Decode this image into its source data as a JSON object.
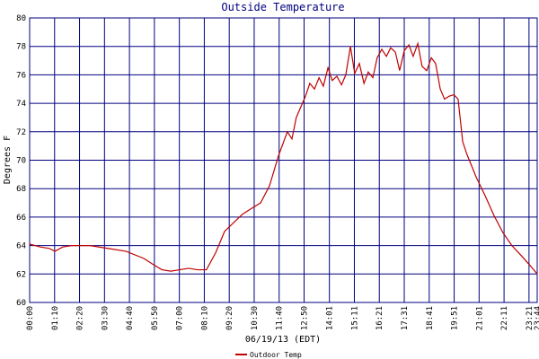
{
  "chart_data": {
    "type": "line",
    "title": "Outside Temperature",
    "x_label": "06/19/13 (EDT)",
    "y_label": "Degrees F",
    "x": [
      0,
      30,
      55,
      71,
      93,
      118,
      169,
      219,
      270,
      320,
      345,
      371,
      396,
      421,
      446,
      471,
      496,
      522,
      547,
      572,
      597,
      622,
      648,
      673,
      698,
      723,
      736,
      748,
      774,
      786,
      799,
      812,
      824,
      837,
      849,
      862,
      875,
      887,
      900,
      912,
      925,
      938,
      950,
      963,
      975,
      988,
      1001,
      1013,
      1026,
      1038,
      1051,
      1064,
      1076,
      1089,
      1101,
      1114,
      1127,
      1139,
      1152,
      1164,
      1177,
      1190,
      1202,
      1215,
      1227,
      1253,
      1278,
      1303,
      1328,
      1353,
      1379,
      1404,
      1424
    ],
    "series": [
      {
        "name": "Outdoor Temp",
        "color": "#c00000",
        "values": [
          64.1,
          63.9,
          63.8,
          63.6,
          63.9,
          64.0,
          64.0,
          63.8,
          63.6,
          63.1,
          62.7,
          62.3,
          62.2,
          62.3,
          62.4,
          62.3,
          62.3,
          63.5,
          65.0,
          65.6,
          66.2,
          66.6,
          67.0,
          68.2,
          70.3,
          72.0,
          71.5,
          73.0,
          74.5,
          75.4,
          75.0,
          75.8,
          75.2,
          76.5,
          75.6,
          75.9,
          75.3,
          76.0,
          78.0,
          76.1,
          76.8,
          75.4,
          76.2,
          75.8,
          77.2,
          77.8,
          77.3,
          77.9,
          77.6,
          76.3,
          77.7,
          78.1,
          77.3,
          78.2,
          76.6,
          76.3,
          77.2,
          76.8,
          75.0,
          74.3,
          74.5,
          74.6,
          74.3,
          71.3,
          70.4,
          68.8,
          67.5,
          66.1,
          64.9,
          64.0,
          63.3,
          62.6,
          62.0
        ]
      }
    ],
    "xlim": [
      0,
      1424
    ],
    "xticks": [
      {
        "value": 0,
        "label": "00:00"
      },
      {
        "value": 70,
        "label": "01:10"
      },
      {
        "value": 140,
        "label": "02:20"
      },
      {
        "value": 210,
        "label": "03:30"
      },
      {
        "value": 280,
        "label": "04:40"
      },
      {
        "value": 350,
        "label": "05:50"
      },
      {
        "value": 420,
        "label": "07:00"
      },
      {
        "value": 490,
        "label": "08:10"
      },
      {
        "value": 560,
        "label": "09:20"
      },
      {
        "value": 630,
        "label": "10:30"
      },
      {
        "value": 700,
        "label": "11:40"
      },
      {
        "value": 770,
        "label": "12:50"
      },
      {
        "value": 841,
        "label": "14:01"
      },
      {
        "value": 911,
        "label": "15:11"
      },
      {
        "value": 981,
        "label": "16:21"
      },
      {
        "value": 1051,
        "label": "17:31"
      },
      {
        "value": 1121,
        "label": "18:41"
      },
      {
        "value": 1191,
        "label": "19:51"
      },
      {
        "value": 1261,
        "label": "21:01"
      },
      {
        "value": 1331,
        "label": "22:11"
      },
      {
        "value": 1401,
        "label": "23:21"
      },
      {
        "value": 1424,
        "label": "23:44"
      }
    ],
    "ylim": [
      60,
      80
    ],
    "yticks": [
      60,
      62,
      64,
      66,
      68,
      70,
      72,
      74,
      76,
      78,
      80
    ],
    "grid": true,
    "grid_color": "#000080"
  }
}
